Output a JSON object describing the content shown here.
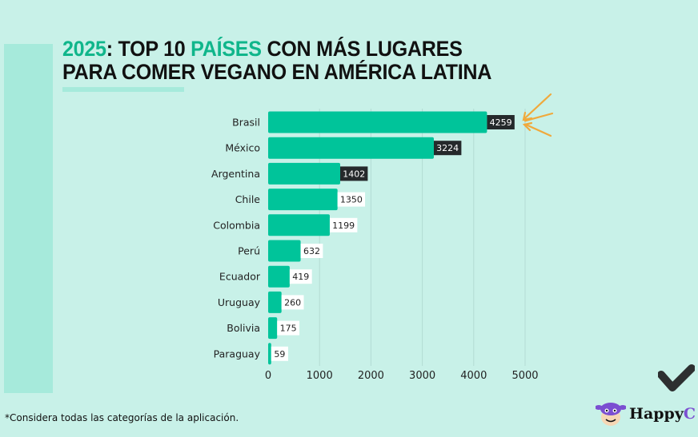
{
  "title": {
    "part1": "2025",
    "part2": ": TOP 10 ",
    "part3": "PAÍSES",
    "part4": " CON MÁS LUGARES",
    "line2": "PARA COMER VEGANO EN AMÉRICA LATINA"
  },
  "footnote": "*Considera todas las categorías de la aplicación.",
  "logo": {
    "text": "Happy",
    "text_cut": "C"
  },
  "colors": {
    "background": "#c8f1e8",
    "bar": "#00c49a",
    "accent": "#10b68b",
    "arrow": "#f0a93c",
    "dark_label": "#25292b"
  },
  "chart_data": {
    "type": "bar",
    "orientation": "horizontal",
    "categories": [
      "Brasil",
      "México",
      "Argentina",
      "Chile",
      "Colombia",
      "Perú",
      "Ecuador",
      "Uruguay",
      "Bolivia",
      "Paraguay"
    ],
    "values": [
      4259,
      3224,
      1402,
      1350,
      1199,
      632,
      419,
      260,
      175,
      59
    ],
    "xlim": [
      0,
      5000
    ],
    "xticks": [
      0,
      1000,
      2000,
      3000,
      4000,
      5000
    ],
    "grid": "vertical",
    "highlight": "Brasil"
  }
}
